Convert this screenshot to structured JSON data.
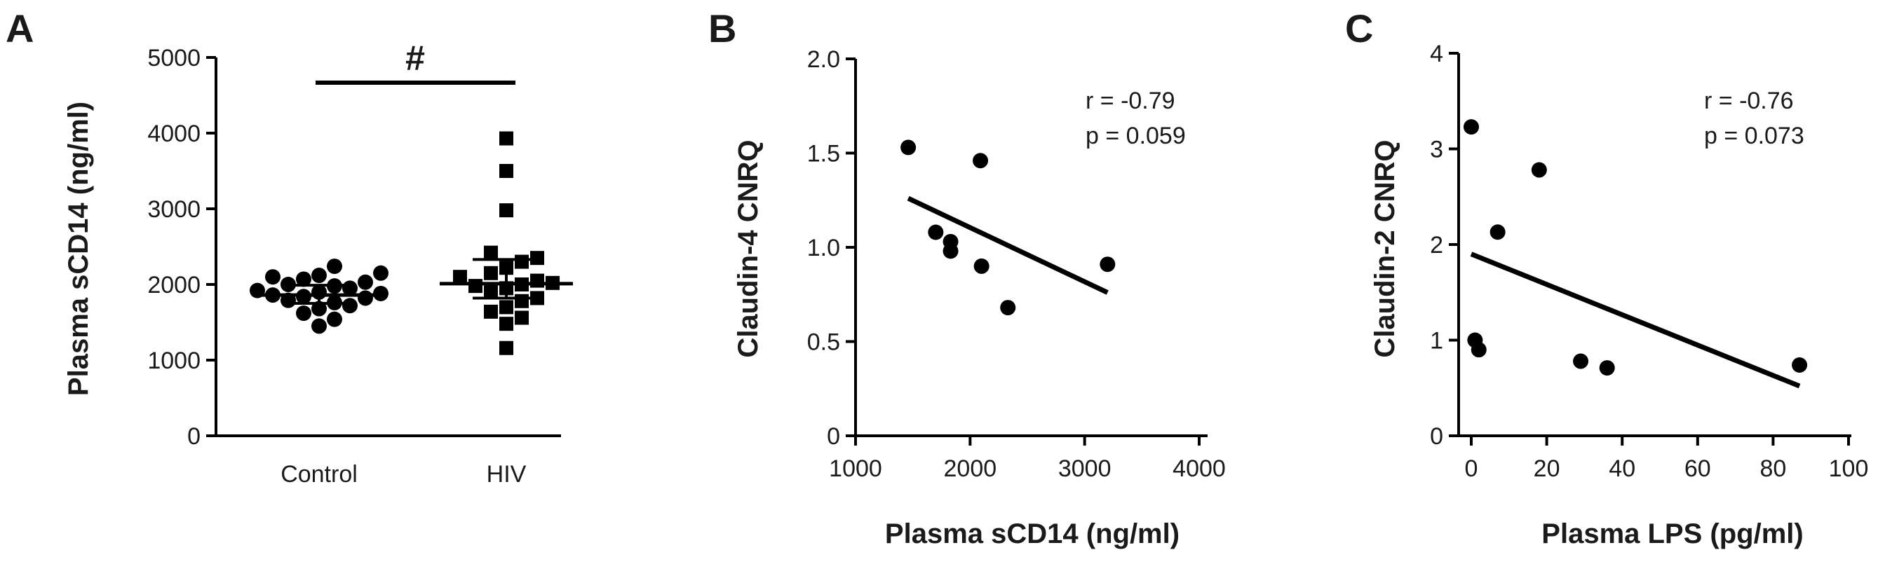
{
  "chart_data": [
    {
      "panel": "A",
      "type": "scatter",
      "ylabel": "Plasma sCD14 (ng/ml)",
      "categories": [
        "Control",
        "HIV"
      ],
      "yticks": [
        "0",
        "1000",
        "2000",
        "3000",
        "4000",
        "5000"
      ],
      "ylim": [
        0,
        5000
      ],
      "significance": "#",
      "series": [
        {
          "category": "Control",
          "marker": "circle",
          "values": [
            1450,
            1540,
            1620,
            1680,
            1720,
            1760,
            1790,
            1820,
            1840,
            1860,
            1880,
            1900,
            1920,
            1950,
            1980,
            2000,
            2030,
            2070,
            2100,
            2120,
            2150,
            2240
          ],
          "mean": 1860,
          "sem": [
            1750,
            1990
          ]
        },
        {
          "category": "HIV",
          "marker": "square",
          "values": [
            1160,
            1480,
            1560,
            1640,
            1700,
            1780,
            1820,
            1900,
            1950,
            1980,
            2000,
            2020,
            2050,
            2100,
            2150,
            2220,
            2300,
            2350,
            2420,
            2980,
            3500,
            3930
          ],
          "mean": 2010,
          "sem": [
            1820,
            2330
          ]
        }
      ]
    },
    {
      "panel": "B",
      "type": "scatter",
      "xlabel": "Plasma sCD14 (ng/ml)",
      "ylabel": "Claudin-4 CNRQ",
      "xticks": [
        "1000",
        "2000",
        "3000",
        "4000"
      ],
      "yticks": [
        "0",
        "0.5",
        "1.0",
        "1.5",
        "2.0"
      ],
      "xlim": [
        1000,
        4000
      ],
      "ylim": [
        0,
        2.0
      ],
      "x": [
        1460,
        1700,
        1830,
        1830,
        2090,
        2100,
        2330,
        3200
      ],
      "y": [
        1.53,
        1.08,
        1.03,
        0.98,
        1.46,
        0.9,
        0.68,
        0.91
      ],
      "fit": {
        "x": [
          1460,
          3200
        ],
        "y": [
          1.26,
          0.76
        ]
      },
      "annotation": {
        "r": "r = -0.79",
        "p": "p = 0.059"
      }
    },
    {
      "panel": "C",
      "type": "scatter",
      "xlabel": "Plasma LPS (pg/ml)",
      "ylabel": "Claudin-2 CNRQ",
      "xticks": [
        "0",
        "20",
        "40",
        "60",
        "80",
        "100"
      ],
      "yticks": [
        "0",
        "1",
        "2",
        "3",
        "4"
      ],
      "xlim": [
        0,
        100
      ],
      "ylim": [
        0,
        4
      ],
      "x": [
        0,
        1,
        2,
        7,
        18,
        29,
        36,
        87
      ],
      "y": [
        3.23,
        1.0,
        0.9,
        2.13,
        2.78,
        0.78,
        0.71,
        0.74
      ],
      "fit": {
        "x": [
          0,
          87
        ],
        "y": [
          1.9,
          0.52
        ]
      },
      "annotation": {
        "r": "r = -0.76",
        "p": "p = 0.073"
      }
    }
  ]
}
